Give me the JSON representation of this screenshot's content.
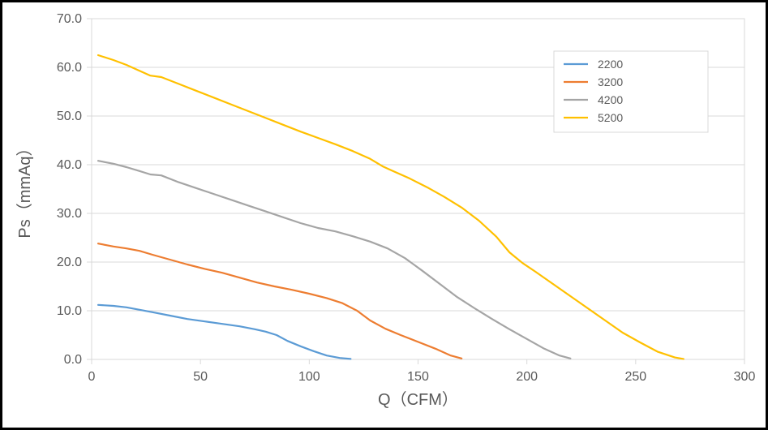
{
  "chart": {
    "type": "line",
    "background_color": "#ffffff",
    "frame_border_color": "#000000",
    "plot_border_color": "#d9d9d9",
    "grid_color": "#d9d9d9",
    "tick_color": "#d9d9d9",
    "text_color": "#595959",
    "xlabel": "Q（CFM）",
    "ylabel": "Ps（mmAq）",
    "label_fontsize": 20,
    "tick_fontsize": 16,
    "legend_fontsize": 14,
    "xlim": [
      0,
      300
    ],
    "ylim": [
      0,
      70
    ],
    "xticks": [
      0,
      50,
      100,
      150,
      200,
      250,
      300
    ],
    "yticks": [
      0.0,
      10.0,
      20.0,
      30.0,
      40.0,
      50.0,
      60.0,
      70.0
    ],
    "xtick_labels": [
      "0",
      "50",
      "100",
      "150",
      "200",
      "250",
      "300"
    ],
    "ytick_labels": [
      "0.0",
      "10.0",
      "20.0",
      "30.0",
      "40.0",
      "50.0",
      "60.0",
      "70.0"
    ],
    "line_width": 2.2,
    "series": [
      {
        "name": "2200",
        "color": "#5b9bd5",
        "data": [
          [
            3,
            11.2
          ],
          [
            10,
            11.0
          ],
          [
            16,
            10.7
          ],
          [
            22,
            10.2
          ],
          [
            28,
            9.7
          ],
          [
            36,
            9.0
          ],
          [
            44,
            8.3
          ],
          [
            52,
            7.8
          ],
          [
            60,
            7.3
          ],
          [
            68,
            6.8
          ],
          [
            75,
            6.2
          ],
          [
            80,
            5.7
          ],
          [
            85,
            5.0
          ],
          [
            90,
            3.8
          ],
          [
            96,
            2.7
          ],
          [
            102,
            1.7
          ],
          [
            108,
            0.8
          ],
          [
            114,
            0.3
          ],
          [
            119,
            0.1
          ]
        ]
      },
      {
        "name": "3200",
        "color": "#ed7d31",
        "data": [
          [
            3,
            23.8
          ],
          [
            10,
            23.2
          ],
          [
            16,
            22.8
          ],
          [
            22,
            22.3
          ],
          [
            28,
            21.5
          ],
          [
            36,
            20.5
          ],
          [
            44,
            19.5
          ],
          [
            52,
            18.6
          ],
          [
            60,
            17.8
          ],
          [
            68,
            16.8
          ],
          [
            76,
            15.8
          ],
          [
            84,
            15.0
          ],
          [
            92,
            14.3
          ],
          [
            100,
            13.5
          ],
          [
            108,
            12.6
          ],
          [
            115,
            11.6
          ],
          [
            122,
            10.0
          ],
          [
            128,
            8.0
          ],
          [
            135,
            6.3
          ],
          [
            142,
            5.0
          ],
          [
            150,
            3.6
          ],
          [
            158,
            2.2
          ],
          [
            165,
            0.8
          ],
          [
            170,
            0.2
          ]
        ]
      },
      {
        "name": "4200",
        "color": "#a5a5a5",
        "data": [
          [
            3,
            40.8
          ],
          [
            10,
            40.2
          ],
          [
            16,
            39.5
          ],
          [
            22,
            38.7
          ],
          [
            27,
            38.0
          ],
          [
            32,
            37.8
          ],
          [
            40,
            36.4
          ],
          [
            48,
            35.2
          ],
          [
            56,
            34.0
          ],
          [
            64,
            32.8
          ],
          [
            72,
            31.6
          ],
          [
            80,
            30.4
          ],
          [
            88,
            29.2
          ],
          [
            96,
            28.0
          ],
          [
            104,
            27.0
          ],
          [
            112,
            26.3
          ],
          [
            120,
            25.3
          ],
          [
            128,
            24.2
          ],
          [
            136,
            22.8
          ],
          [
            144,
            20.8
          ],
          [
            152,
            18.2
          ],
          [
            160,
            15.5
          ],
          [
            168,
            12.8
          ],
          [
            176,
            10.5
          ],
          [
            184,
            8.3
          ],
          [
            192,
            6.2
          ],
          [
            200,
            4.2
          ],
          [
            208,
            2.2
          ],
          [
            215,
            0.8
          ],
          [
            220,
            0.2
          ]
        ]
      },
      {
        "name": "5200",
        "color": "#ffc000",
        "data": [
          [
            3,
            62.5
          ],
          [
            10,
            61.5
          ],
          [
            16,
            60.5
          ],
          [
            22,
            59.3
          ],
          [
            27,
            58.3
          ],
          [
            32,
            58.0
          ],
          [
            40,
            56.6
          ],
          [
            48,
            55.2
          ],
          [
            56,
            53.8
          ],
          [
            64,
            52.4
          ],
          [
            72,
            51.0
          ],
          [
            80,
            49.6
          ],
          [
            88,
            48.2
          ],
          [
            96,
            46.8
          ],
          [
            104,
            45.5
          ],
          [
            112,
            44.2
          ],
          [
            120,
            42.8
          ],
          [
            128,
            41.2
          ],
          [
            134,
            39.6
          ],
          [
            138,
            38.8
          ],
          [
            146,
            37.2
          ],
          [
            154,
            35.4
          ],
          [
            162,
            33.4
          ],
          [
            170,
            31.2
          ],
          [
            178,
            28.5
          ],
          [
            186,
            25.2
          ],
          [
            192,
            22.0
          ],
          [
            198,
            19.8
          ],
          [
            204,
            18.0
          ],
          [
            212,
            15.5
          ],
          [
            220,
            13.0
          ],
          [
            228,
            10.5
          ],
          [
            236,
            8.0
          ],
          [
            244,
            5.5
          ],
          [
            252,
            3.5
          ],
          [
            260,
            1.6
          ],
          [
            268,
            0.4
          ],
          [
            272,
            0.1
          ]
        ]
      }
    ],
    "legend": {
      "position": "upper-right",
      "border_color": "#d9d9d9",
      "items": [
        "2200",
        "3200",
        "4200",
        "5200"
      ]
    }
  }
}
